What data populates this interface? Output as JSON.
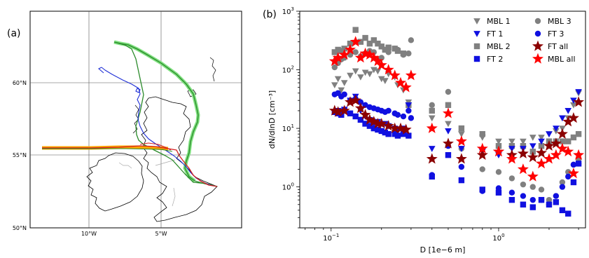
{
  "figure": {
    "left_label": "(a)",
    "right_label": "(b)"
  },
  "map": {
    "lat_labels": [
      "60°N",
      "55°N",
      "50°N"
    ],
    "lon_labels": [
      "10°W",
      "5°W"
    ],
    "track_colors": {
      "green": "#2a8a2a",
      "blue": "#1f2fd6",
      "red": "#d21f1f",
      "highlight_green": "#7fe07f",
      "highlight_orange": "#ffa500"
    }
  },
  "chart_data": {
    "type": "scatter",
    "xlabel": "D [1e−6 m]",
    "ylabel": "dN/dlnD [cm⁻³]",
    "xscale": "log",
    "yscale": "log",
    "xlim": [
      0.065,
      3.3
    ],
    "ylim": [
      0.2,
      1000
    ],
    "xticks": [
      {
        "value": 0.1,
        "base": "10",
        "exp": "−1"
      },
      {
        "value": 1,
        "base": "10",
        "exp": "0"
      }
    ],
    "yticks": [
      {
        "value": 1,
        "base": "10",
        "exp": "0"
      },
      {
        "value": 10,
        "base": "10",
        "exp": "1"
      },
      {
        "value": 100,
        "base": "10",
        "exp": "2"
      },
      {
        "value": 1000,
        "base": "10",
        "exp": "3"
      }
    ],
    "legend_position": "top-right",
    "series": [
      {
        "name": "MBL 1",
        "marker": "triangle-down",
        "color": "#808080",
        "x": [
          0.105,
          0.11,
          0.115,
          0.12,
          0.13,
          0.14,
          0.15,
          0.16,
          0.17,
          0.18,
          0.19,
          0.2,
          0.21,
          0.22,
          0.24,
          0.25,
          0.27,
          0.29,
          0.4,
          0.5,
          0.6,
          0.8,
          1.0,
          1.2,
          1.4,
          1.6,
          1.8,
          2.0,
          2.2,
          2.4,
          2.6,
          2.8,
          3.0
        ],
        "y": [
          55,
          70,
          45,
          60,
          80,
          95,
          75,
          90,
          85,
          100,
          95,
          70,
          65,
          85,
          75,
          55,
          45,
          28,
          15,
          12,
          8,
          7,
          6,
          6,
          6,
          7,
          7,
          8,
          9,
          10,
          15,
          25,
          40
        ]
      },
      {
        "name": "MBL 2",
        "marker": "square",
        "color": "#808080",
        "x": [
          0.105,
          0.11,
          0.115,
          0.12,
          0.13,
          0.14,
          0.15,
          0.16,
          0.17,
          0.18,
          0.19,
          0.2,
          0.21,
          0.22,
          0.24,
          0.25,
          0.27,
          0.29,
          0.4,
          0.5,
          0.6,
          0.8,
          1.0,
          1.2,
          1.4,
          1.6,
          1.8,
          2.0,
          2.2,
          2.4,
          2.6,
          2.8,
          3.0
        ],
        "y": [
          200,
          220,
          210,
          230,
          280,
          480,
          300,
          350,
          280,
          320,
          280,
          250,
          220,
          240,
          230,
          210,
          190,
          25,
          20,
          25,
          10,
          8,
          5,
          5,
          5,
          4,
          5,
          6,
          6,
          6,
          6,
          7,
          8
        ]
      },
      {
        "name": "MBL 3",
        "marker": "circle",
        "color": "#808080",
        "x": [
          0.105,
          0.11,
          0.115,
          0.12,
          0.13,
          0.14,
          0.15,
          0.16,
          0.17,
          0.18,
          0.19,
          0.2,
          0.21,
          0.22,
          0.24,
          0.25,
          0.27,
          0.29,
          0.3,
          0.4,
          0.5,
          0.6,
          0.8,
          1.0,
          1.2,
          1.4,
          1.6,
          1.8,
          2.0,
          2.2,
          2.4,
          2.6,
          2.8,
          3.0
        ],
        "y": [
          110,
          130,
          150,
          160,
          180,
          200,
          170,
          190,
          210,
          200,
          150,
          160,
          220,
          200,
          230,
          220,
          180,
          190,
          320,
          25,
          42,
          4.5,
          2.0,
          1.8,
          1.4,
          1.1,
          1.0,
          0.9,
          0.6,
          0.7,
          1.2,
          1.8,
          2.4,
          3.0
        ]
      },
      {
        "name": "FT 1",
        "marker": "triangle-down",
        "color": "#1010e0",
        "x": [
          0.105,
          0.11,
          0.115,
          0.12,
          0.13,
          0.14,
          0.15,
          0.16,
          0.17,
          0.18,
          0.19,
          0.2,
          0.21,
          0.22,
          0.24,
          0.25,
          0.27,
          0.29,
          0.4,
          0.5,
          0.6,
          0.8,
          1.0,
          1.2,
          1.4,
          1.6,
          1.8,
          2.0,
          2.2,
          2.4,
          2.6,
          2.8,
          3.0
        ],
        "y": [
          19,
          20,
          18,
          21,
          30,
          35,
          20,
          16,
          14,
          12,
          13,
          12,
          12,
          11,
          10,
          9,
          10,
          25,
          4.5,
          9,
          4.5,
          4,
          3.5,
          4.5,
          4.5,
          5,
          6,
          8,
          10,
          15,
          20,
          30,
          42
        ]
      },
      {
        "name": "FT 2",
        "marker": "square",
        "color": "#1010e0",
        "x": [
          0.105,
          0.11,
          0.115,
          0.12,
          0.13,
          0.14,
          0.15,
          0.16,
          0.17,
          0.18,
          0.19,
          0.2,
          0.21,
          0.22,
          0.24,
          0.25,
          0.27,
          0.29,
          0.4,
          0.5,
          0.6,
          0.8,
          1.0,
          1.2,
          1.4,
          1.6,
          1.8,
          2.0,
          2.2,
          2.4,
          2.6,
          2.8,
          3.0
        ],
        "y": [
          19,
          18,
          17,
          20,
          18,
          16,
          14,
          12,
          11,
          10,
          9.5,
          9,
          8.5,
          8,
          8,
          7.5,
          8,
          7.5,
          1.5,
          3.5,
          1.3,
          0.9,
          0.8,
          0.6,
          0.5,
          0.45,
          0.6,
          0.5,
          0.55,
          0.4,
          0.35,
          1.2,
          2.5
        ]
      },
      {
        "name": "FT 3",
        "marker": "circle",
        "color": "#1010e0",
        "x": [
          0.105,
          0.11,
          0.115,
          0.12,
          0.13,
          0.14,
          0.15,
          0.16,
          0.17,
          0.18,
          0.19,
          0.2,
          0.21,
          0.22,
          0.24,
          0.25,
          0.27,
          0.29,
          0.3,
          0.4,
          0.5,
          0.6,
          0.8,
          1.0,
          1.2,
          1.4,
          1.6,
          1.8,
          2.0,
          2.2,
          2.4,
          2.6,
          2.8,
          3.0
        ],
        "y": [
          38,
          40,
          35,
          38,
          30,
          32,
          28,
          25,
          23,
          22,
          21,
          20,
          19,
          20,
          18,
          17,
          16,
          20,
          15,
          1.6,
          5,
          2.2,
          0.85,
          0.95,
          0.8,
          0.7,
          0.6,
          0.6,
          0.5,
          0.7,
          1.0,
          1.5,
          2.4,
          2.5
        ]
      },
      {
        "name": "FT all",
        "marker": "star",
        "color": "#8b0000",
        "x": [
          0.105,
          0.11,
          0.12,
          0.13,
          0.14,
          0.15,
          0.16,
          0.17,
          0.18,
          0.19,
          0.2,
          0.22,
          0.24,
          0.26,
          0.28,
          0.4,
          0.5,
          0.6,
          0.8,
          1.0,
          1.2,
          1.4,
          1.6,
          1.8,
          2.0,
          2.2,
          2.4,
          2.6,
          2.8,
          3.0
        ],
        "y": [
          20,
          19,
          20,
          28,
          30,
          22,
          17,
          14,
          13,
          12,
          12,
          11,
          10,
          10,
          9.5,
          3.0,
          5.5,
          3.0,
          3.5,
          4.0,
          3.5,
          3.7,
          3.2,
          3.8,
          5.0,
          5.5,
          8.0,
          13.0,
          15.0,
          28.0
        ]
      },
      {
        "name": "MBL all",
        "marker": "star",
        "color": "#ff0000",
        "x": [
          0.105,
          0.11,
          0.12,
          0.13,
          0.14,
          0.15,
          0.16,
          0.17,
          0.18,
          0.19,
          0.2,
          0.22,
          0.24,
          0.26,
          0.28,
          0.3,
          0.4,
          0.5,
          0.6,
          0.8,
          1.0,
          1.2,
          1.4,
          1.6,
          1.8,
          2.0,
          2.2,
          2.4,
          2.6,
          2.8,
          3.0
        ],
        "y": [
          140,
          160,
          180,
          220,
          300,
          160,
          190,
          180,
          160,
          140,
          120,
          100,
          80,
          60,
          50,
          80,
          10,
          18,
          6,
          4.5,
          4,
          3,
          2,
          1.5,
          2.5,
          3.0,
          3.5,
          4.5,
          4.0,
          1.7,
          3.5
        ]
      }
    ]
  }
}
